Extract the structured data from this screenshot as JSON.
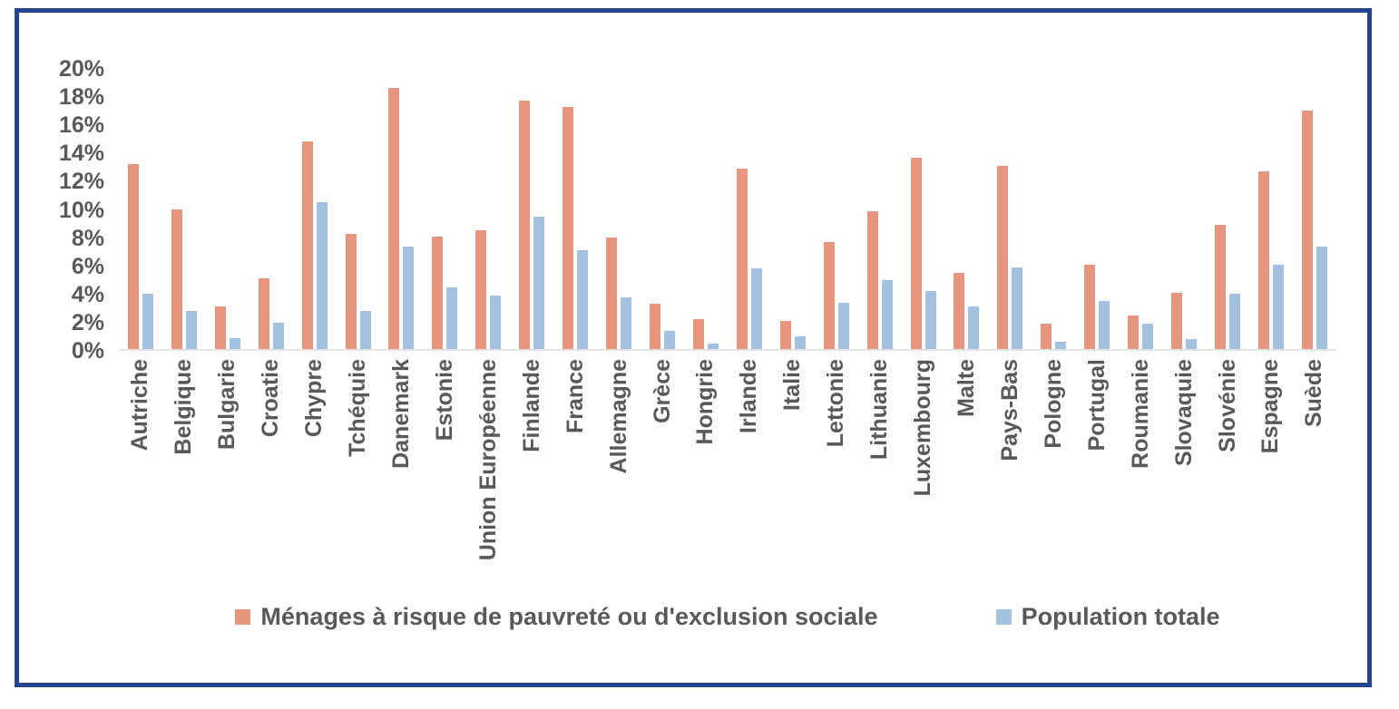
{
  "frame": {
    "border_color": "#24438E"
  },
  "chart_data": {
    "type": "bar",
    "title": "",
    "xlabel": "",
    "ylabel": "",
    "ylim": [
      0,
      20
    ],
    "y_tick_step": 2,
    "y_ticks": [
      "20%",
      "18%",
      "16%",
      "14%",
      "12%",
      "10%",
      "8%",
      "6%",
      "4%",
      "2%",
      "0%"
    ],
    "grid": false,
    "legend_position": "bottom",
    "axis_text_color": "#595959",
    "baseline_color": "#E4E4E4",
    "categories": [
      "Autriche",
      "Belgique",
      "Bulgarie",
      "Croatie",
      "Chypre",
      "Tchéquie",
      "Danemark",
      "Estonie",
      "Union Européenne",
      "Finlande",
      "France",
      "Allemagne",
      "Grèce",
      "Hongrie",
      "Irlande",
      "Italie",
      "Lettonie",
      "Lithuanie",
      "Luxembourg",
      "Malte",
      "Pays-Bas",
      "Pologne",
      "Portugal",
      "Roumanie",
      "Slovaquie",
      "Slovénie",
      "Espagne",
      "Suède"
    ],
    "series": [
      {
        "name": "Ménages à risque de pauvreté ou d'exclusion sociale",
        "color": "#E8957F",
        "values": [
          13.1,
          9.9,
          3.0,
          5.0,
          14.7,
          8.2,
          18.5,
          8.0,
          8.4,
          17.6,
          17.2,
          7.9,
          3.2,
          2.1,
          12.8,
          2.0,
          7.6,
          9.8,
          13.6,
          5.4,
          13.0,
          1.8,
          6.0,
          2.4,
          4.0,
          8.8,
          12.6,
          16.9
        ]
      },
      {
        "name": "Population totale",
        "color": "#A3C1E3",
        "values": [
          3.9,
          2.7,
          0.8,
          1.9,
          10.4,
          2.7,
          7.3,
          4.4,
          3.8,
          9.4,
          7.0,
          3.7,
          1.3,
          0.4,
          5.7,
          0.9,
          3.3,
          4.9,
          4.1,
          3.0,
          5.8,
          0.5,
          3.4,
          1.8,
          0.7,
          3.9,
          6.0,
          7.3
        ]
      }
    ]
  }
}
